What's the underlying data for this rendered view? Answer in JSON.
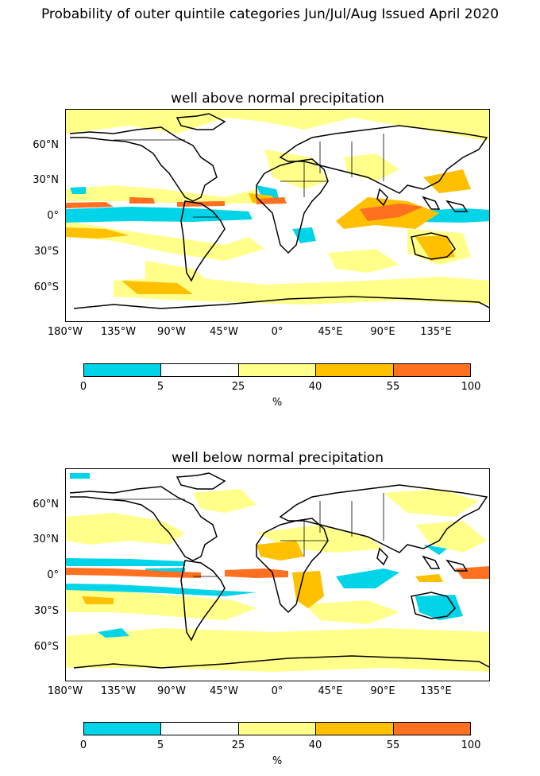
{
  "title": "Probability of outer quintile categories Jun/Jul/Aug Issued April 2020",
  "panels": [
    {
      "title": "well above normal precipitation",
      "lat_labels": [
        "60°N",
        "30°N",
        "0°",
        "30°S",
        "60°S"
      ],
      "lon_labels": [
        "180°W",
        "135°W",
        "90°W",
        "45°W",
        "0°",
        "45°E",
        "90°E",
        "135°E"
      ]
    },
    {
      "title": "well below normal precipitation",
      "lat_labels": [
        "60°N",
        "30°N",
        "0°",
        "30°S",
        "60°S"
      ],
      "lon_labels": [
        "180°W",
        "135°W",
        "90°W",
        "45°W",
        "0°",
        "45°E",
        "90°E",
        "135°E"
      ]
    }
  ],
  "colorbar": {
    "ticks": [
      "0",
      "5",
      "25",
      "40",
      "55",
      "100"
    ],
    "unit": "%",
    "colors": [
      "#00d4e8",
      "#ffffff",
      "#ffff8a",
      "#ffc000",
      "#ff7020"
    ]
  },
  "colors": {
    "cyan": "#00d4e8",
    "light_yellow": "#ffff8a",
    "yellow": "#ffc000",
    "orange": "#ff7020"
  }
}
